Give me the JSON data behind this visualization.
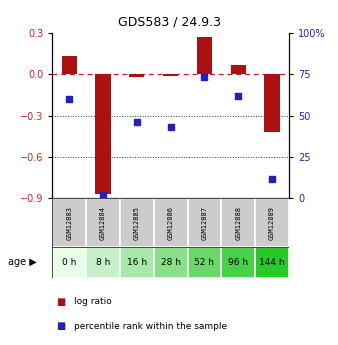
{
  "title": "GDS583 / 24.9.3",
  "categories": [
    "GSM12883",
    "GSM12884",
    "GSM12885",
    "GSM12886",
    "GSM12887",
    "GSM12888",
    "GSM12889"
  ],
  "age_labels": [
    "0 h",
    "8 h",
    "16 h",
    "28 h",
    "52 h",
    "96 h",
    "144 h"
  ],
  "log_ratio": [
    0.13,
    -0.87,
    -0.02,
    -0.01,
    0.27,
    0.07,
    -0.42
  ],
  "percentile_rank": [
    60,
    2,
    46,
    43,
    73,
    62,
    12
  ],
  "ylim_left": [
    -0.9,
    0.3
  ],
  "ylim_right": [
    0,
    100
  ],
  "yticks_left": [
    -0.9,
    -0.6,
    -0.3,
    0.0,
    0.3
  ],
  "yticks_right": [
    0,
    25,
    50,
    75,
    100
  ],
  "ytick_right_labels": [
    "0",
    "25",
    "50",
    "75",
    "100%"
  ],
  "bar_color": "#aa1111",
  "dot_color": "#2222bb",
  "dashed_line_color": "#cc2222",
  "dotted_line_color": "#333333",
  "age_colors": [
    "#e8ffe8",
    "#c8f0c8",
    "#a8e8a8",
    "#88e088",
    "#68d868",
    "#48d048",
    "#28c828"
  ],
  "sample_bg_color": "#cccccc",
  "legend_log_ratio_color": "#aa1111",
  "legend_pct_color": "#2222bb",
  "x_positions": [
    0,
    1,
    2,
    3,
    4,
    5,
    6
  ]
}
